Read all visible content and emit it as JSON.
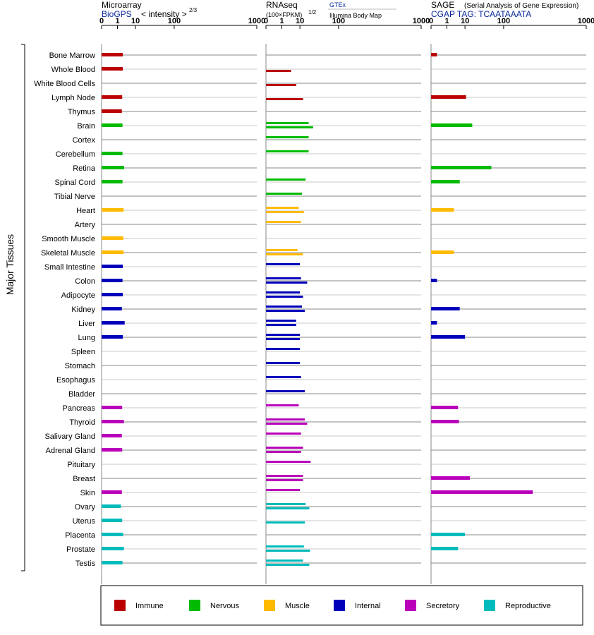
{
  "chart_data": {
    "type": "bar",
    "orientation": "horizontal",
    "y_axis_title": "Major Tissues",
    "tissues": [
      "Bone Marrow",
      "Whole Blood",
      "White Blood Cells",
      "Lymph Node",
      "Thymus",
      "Brain",
      "Cortex",
      "Cerebellum",
      "Retina",
      "Spinal Cord",
      "Tibial Nerve",
      "Heart",
      "Artery",
      "Smooth Muscle",
      "Skeletal Muscle",
      "Small Intestine",
      "Colon",
      "Adipocyte",
      "Kidney",
      "Liver",
      "Lung",
      "Spleen",
      "Stomach",
      "Esophagus",
      "Bladder",
      "Pancreas",
      "Thyroid",
      "Salivary Gland",
      "Adrenal Gland",
      "Pituitary",
      "Breast",
      "Skin",
      "Ovary",
      "Uterus",
      "Placenta",
      "Prostate",
      "Testis"
    ],
    "groups": [
      "Immune",
      "Immune",
      "Immune",
      "Immune",
      "Immune",
      "Nervous",
      "Nervous",
      "Nervous",
      "Nervous",
      "Nervous",
      "Nervous",
      "Muscle",
      "Muscle",
      "Muscle",
      "Muscle",
      "Internal",
      "Internal",
      "Internal",
      "Internal",
      "Internal",
      "Internal",
      "Internal",
      "Internal",
      "Internal",
      "Internal",
      "Secretory",
      "Secretory",
      "Secretory",
      "Secretory",
      "Secretory",
      "Secretory",
      "Secretory",
      "Reproductive",
      "Reproductive",
      "Reproductive",
      "Reproductive",
      "Reproductive"
    ],
    "legend": [
      {
        "name": "Immune",
        "color": "#bb0000"
      },
      {
        "name": "Nervous",
        "color": "#00bb00"
      },
      {
        "name": "Muscle",
        "color": "#ffbb00"
      },
      {
        "name": "Internal",
        "color": "#0000bb"
      },
      {
        "name": "Secretory",
        "color": "#bb00bb"
      },
      {
        "name": "Reproductive",
        "color": "#00bbbb"
      }
    ],
    "panels": [
      {
        "key": "microarray",
        "title": "Microarray",
        "subtitle": "BioGPS",
        "unit_label": "< intensity >",
        "unit_exponent": "2/3",
        "ticks": [
          "0",
          "1",
          "10",
          "100",
          "1000"
        ],
        "xlim": [
          0,
          1000
        ],
        "values": [
          2.4,
          2.4,
          null,
          2.2,
          2.1,
          2.3,
          null,
          2.3,
          2.9,
          2.3,
          null,
          2.7,
          null,
          2.6,
          2.7,
          2.4,
          2.3,
          2.4,
          2.1,
          3.1,
          2.4,
          null,
          null,
          null,
          null,
          2.2,
          2.8,
          2.1,
          2.2,
          null,
          null,
          2.1,
          1.8,
          2.2,
          2.5,
          2.8,
          2.3
        ]
      },
      {
        "key": "rnaseq",
        "title": "RNAseq",
        "unit_label": "(100×FPKM)",
        "unit_exponent": "1/2",
        "legend_gtex": "GTEx",
        "legend_bodymap": "Illumina Body Map",
        "ticks": [
          "0",
          "1",
          "10",
          "100",
          "1000"
        ],
        "xlim": [
          0,
          1000
        ],
        "gtex": [
          null,
          null,
          null,
          null,
          null,
          20,
          20,
          20,
          null,
          16,
          12,
          9,
          11,
          null,
          8,
          10,
          11,
          10,
          12,
          7,
          10,
          10,
          10,
          11,
          15,
          9,
          15,
          11,
          13,
          23,
          13,
          10,
          16,
          null,
          null,
          14,
          13
        ],
        "bodymap": [
          null,
          4,
          7,
          13,
          null,
          27,
          null,
          null,
          null,
          null,
          null,
          14,
          null,
          null,
          13,
          null,
          18,
          13,
          15,
          7,
          10,
          null,
          null,
          null,
          null,
          null,
          18,
          null,
          11,
          null,
          13,
          null,
          21,
          15,
          null,
          22,
          21
        ]
      },
      {
        "key": "sage",
        "title": "SAGE",
        "subtitle_note": "(Serial Analysis of Gene Expression)",
        "subtitle": "CGAP TAG: TCAATAAATA",
        "ticks": [
          "0",
          "1",
          "10",
          "100",
          "1000"
        ],
        "xlim": [
          0,
          1000
        ],
        "values": [
          0.05,
          null,
          null,
          11,
          null,
          18,
          null,
          null,
          57,
          6,
          null,
          3,
          null,
          null,
          3,
          null,
          0.05,
          null,
          6,
          0.05,
          10,
          null,
          null,
          null,
          null,
          5,
          5.5,
          null,
          null,
          null,
          15,
          278,
          null,
          null,
          10,
          5,
          null
        ]
      }
    ]
  }
}
